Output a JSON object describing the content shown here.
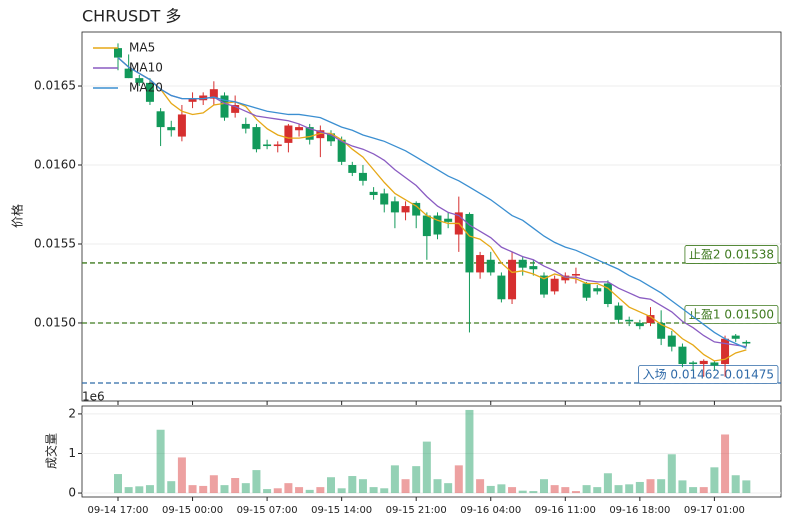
{
  "chart_data": {
    "type": "candlestick",
    "title": "CHRUSDT  多",
    "ylabel": "价格",
    "categories": [
      "09-14 17:00",
      null,
      null,
      null,
      null,
      null,
      null,
      "09-15 00:00",
      null,
      null,
      null,
      null,
      null,
      null,
      "09-15 07:00",
      null,
      null,
      null,
      null,
      null,
      null,
      "09-15 14:00",
      null,
      null,
      null,
      null,
      null,
      null,
      "09-15 21:00",
      null,
      null,
      null,
      null,
      null,
      null,
      "09-16 04:00",
      null,
      null,
      null,
      null,
      null,
      null,
      "09-16 11:00",
      null,
      null,
      null,
      null,
      null,
      null,
      "09-16 18:00",
      null,
      null,
      null,
      null,
      null,
      null,
      "09-17 01:00",
      null,
      null,
      null
    ],
    "open": [
      0.01674,
      0.01661,
      0.01655,
      0.01652,
      0.01634,
      0.01624,
      0.01618,
      0.0164,
      0.01641,
      0.01642,
      0.01644,
      0.01633,
      0.01626,
      0.01624,
      0.01613,
      0.01612,
      0.01614,
      0.01622,
      0.01624,
      0.01617,
      0.0162,
      0.01616,
      0.016,
      0.01595,
      0.01583,
      0.01582,
      0.01577,
      0.0157,
      0.01576,
      0.01568,
      0.01568,
      0.01566,
      0.01556,
      0.01569,
      0.01532,
      0.0154,
      0.0153,
      0.01515,
      0.0154,
      0.01536,
      0.0153,
      0.0152,
      0.01527,
      0.0153,
      0.01525,
      0.01522,
      0.01525,
      0.01511,
      0.01502,
      0.015,
      0.015,
      0.015,
      0.01492,
      0.01485,
      0.01475,
      0.01474,
      0.01475,
      0.01474,
      0.01492,
      0.01488
    ],
    "high": [
      0.01677,
      0.0167,
      0.01657,
      0.01655,
      0.01636,
      0.01628,
      0.01638,
      0.01646,
      0.01646,
      0.01653,
      0.01646,
      0.01644,
      0.0163,
      0.01626,
      0.01616,
      0.01615,
      0.01626,
      0.01626,
      0.01626,
      0.01625,
      0.01622,
      0.01618,
      0.01602,
      0.016,
      0.01586,
      0.01585,
      0.0158,
      0.01577,
      0.01577,
      0.0157,
      0.0157,
      0.0157,
      0.0158,
      0.0157,
      0.01545,
      0.01545,
      0.01532,
      0.01545,
      0.01542,
      0.0154,
      0.01532,
      0.0153,
      0.01532,
      0.01535,
      0.01526,
      0.01524,
      0.01527,
      0.01513,
      0.01504,
      0.01502,
      0.0151,
      0.01508,
      0.01495,
      0.01487,
      0.01476,
      0.01477,
      0.01476,
      0.01492,
      0.01493,
      0.01489
    ],
    "low": [
      0.0166,
      0.01655,
      0.0165,
      0.01638,
      0.01612,
      0.01618,
      0.01615,
      0.01636,
      0.01638,
      0.01638,
      0.01628,
      0.0163,
      0.0162,
      0.01608,
      0.0161,
      0.01608,
      0.01608,
      0.01618,
      0.01613,
      0.01605,
      0.01612,
      0.016,
      0.01593,
      0.01587,
      0.01578,
      0.0157,
      0.0156,
      0.01565,
      0.0156,
      0.0154,
      0.01553,
      0.0156,
      0.01545,
      0.01494,
      0.01528,
      0.0153,
      0.01513,
      0.01512,
      0.0153,
      0.0153,
      0.01516,
      0.01518,
      0.01525,
      0.01525,
      0.01514,
      0.01518,
      0.0151,
      0.015,
      0.01498,
      0.01496,
      0.01498,
      0.01486,
      0.01482,
      0.01472,
      0.0147,
      0.01466,
      0.0147,
      0.01466,
      0.01488,
      0.01485
    ],
    "close": [
      0.01668,
      0.01655,
      0.01652,
      0.0164,
      0.01624,
      0.01622,
      0.01632,
      0.01642,
      0.01644,
      0.01648,
      0.0163,
      0.01638,
      0.01623,
      0.0161,
      0.01612,
      0.01613,
      0.01625,
      0.01624,
      0.01616,
      0.01622,
      0.01615,
      0.01602,
      0.01595,
      0.0159,
      0.01581,
      0.01575,
      0.0157,
      0.01574,
      0.01568,
      0.01555,
      0.01556,
      0.01564,
      0.0157,
      0.01532,
      0.01543,
      0.01532,
      0.01515,
      0.0154,
      0.01535,
      0.01534,
      0.01518,
      0.01528,
      0.0153,
      0.01531,
      0.01516,
      0.0152,
      0.01512,
      0.01502,
      0.01501,
      0.01498,
      0.01505,
      0.0149,
      0.01485,
      0.01474,
      0.01474,
      0.01476,
      0.01473,
      0.0149,
      0.0149,
      0.01487
    ],
    "up_color": "#d62f2f",
    "down_color": "#12995a",
    "series": [
      {
        "name": "MA5",
        "color": "#e6a817",
        "values": [
          0.01668,
          0.01662,
          0.01658,
          0.01654,
          0.01648,
          0.01639,
          0.01634,
          0.01632,
          0.01633,
          0.01638,
          0.01639,
          0.0164,
          0.01637,
          0.01629,
          0.01623,
          0.01619,
          0.01617,
          0.01617,
          0.01618,
          0.0162,
          0.0162,
          0.01616,
          0.0161,
          0.01605,
          0.01597,
          0.01589,
          0.01582,
          0.01578,
          0.01574,
          0.01568,
          0.01565,
          0.01563,
          0.01563,
          0.01555,
          0.01553,
          0.01548,
          0.01538,
          0.01532,
          0.01533,
          0.01531,
          0.01528,
          0.01531,
          0.01529,
          0.01528,
          0.01525,
          0.01525,
          0.01522,
          0.01516,
          0.0151,
          0.01507,
          0.01504,
          0.01499,
          0.01496,
          0.0149,
          0.01486,
          0.0148,
          0.01476,
          0.01477,
          0.01481,
          0.01483
        ]
      },
      {
        "name": "MA10",
        "color": "#8a5cc2",
        "values": [
          0.01668,
          0.01662,
          0.01658,
          0.01654,
          0.01648,
          0.01644,
          0.01642,
          0.01642,
          0.01642,
          0.01643,
          0.01639,
          0.01637,
          0.01634,
          0.01631,
          0.0163,
          0.01629,
          0.01628,
          0.01626,
          0.01623,
          0.01621,
          0.01619,
          0.01615,
          0.01612,
          0.0161,
          0.01607,
          0.01603,
          0.01597,
          0.01592,
          0.01587,
          0.0158,
          0.01574,
          0.0157,
          0.01568,
          0.01562,
          0.01558,
          0.01554,
          0.01548,
          0.01545,
          0.01542,
          0.0154,
          0.01536,
          0.01533,
          0.01529,
          0.01529,
          0.01527,
          0.01526,
          0.01526,
          0.01522,
          0.01519,
          0.01516,
          0.01515,
          0.01511,
          0.01507,
          0.01501,
          0.01497,
          0.01492,
          0.01488,
          0.01487,
          0.01486,
          0.01485
        ]
      },
      {
        "name": "MA20",
        "color": "#3b8fd1",
        "values": [
          0.01668,
          0.01662,
          0.01658,
          0.01654,
          0.01648,
          0.01644,
          0.01642,
          0.01642,
          0.01642,
          0.01643,
          0.01641,
          0.0164,
          0.01638,
          0.01636,
          0.01634,
          0.01633,
          0.01632,
          0.01632,
          0.01631,
          0.0163,
          0.01627,
          0.01624,
          0.01622,
          0.01619,
          0.01617,
          0.01615,
          0.01612,
          0.01609,
          0.01605,
          0.01601,
          0.01597,
          0.01593,
          0.0159,
          0.01586,
          0.01582,
          0.01578,
          0.01573,
          0.01568,
          0.01565,
          0.0156,
          0.01555,
          0.01551,
          0.01548,
          0.01546,
          0.01543,
          0.0154,
          0.01537,
          0.01534,
          0.0153,
          0.01527,
          0.01523,
          0.01519,
          0.01514,
          0.01509,
          0.01504,
          0.01499,
          0.01494,
          0.0149,
          0.01487,
          0.01484
        ]
      }
    ],
    "ylim": [
      0.014506,
      0.016842
    ],
    "yticks": [
      {
        "value": 0.015,
        "label": "0.0150"
      },
      {
        "value": 0.0155,
        "label": "0.0155"
      },
      {
        "value": 0.016,
        "label": "0.0160"
      },
      {
        "value": 0.0165,
        "label": "0.0165"
      }
    ],
    "grid": true,
    "legend": "upper left",
    "hlines": [
      {
        "label": "止盈2 0.01538",
        "value": 0.01538,
        "color": "#3f7a1f"
      },
      {
        "label": "止盈1 0.01500",
        "value": 0.015,
        "color": "#3f7a1f"
      },
      {
        "label": "入场 0.01462-0.01475",
        "value": 0.01462,
        "color": "#2f6aa8"
      }
    ],
    "volume": {
      "type": "bar",
      "ylabel": "成交量",
      "offset_label": "1e6",
      "values": [
        0.48,
        0.15,
        0.17,
        0.2,
        1.6,
        0.3,
        0.9,
        0.2,
        0.18,
        0.45,
        0.2,
        0.38,
        0.25,
        0.58,
        0.1,
        0.12,
        0.25,
        0.15,
        0.08,
        0.15,
        0.4,
        0.12,
        0.43,
        0.35,
        0.15,
        0.12,
        0.7,
        0.35,
        0.68,
        1.3,
        0.35,
        0.25,
        0.7,
        2.1,
        0.35,
        0.18,
        0.22,
        0.15,
        0.06,
        0.05,
        0.35,
        0.2,
        0.15,
        0.05,
        0.2,
        0.15,
        0.5,
        0.2,
        0.22,
        0.28,
        0.35,
        0.35,
        0.98,
        0.32,
        0.15,
        0.15,
        0.65,
        1.48,
        0.45,
        0.32
      ],
      "ylim": [
        -0.1,
        2.2
      ],
      "yticks": [
        0,
        1,
        2
      ],
      "grid": true
    }
  }
}
